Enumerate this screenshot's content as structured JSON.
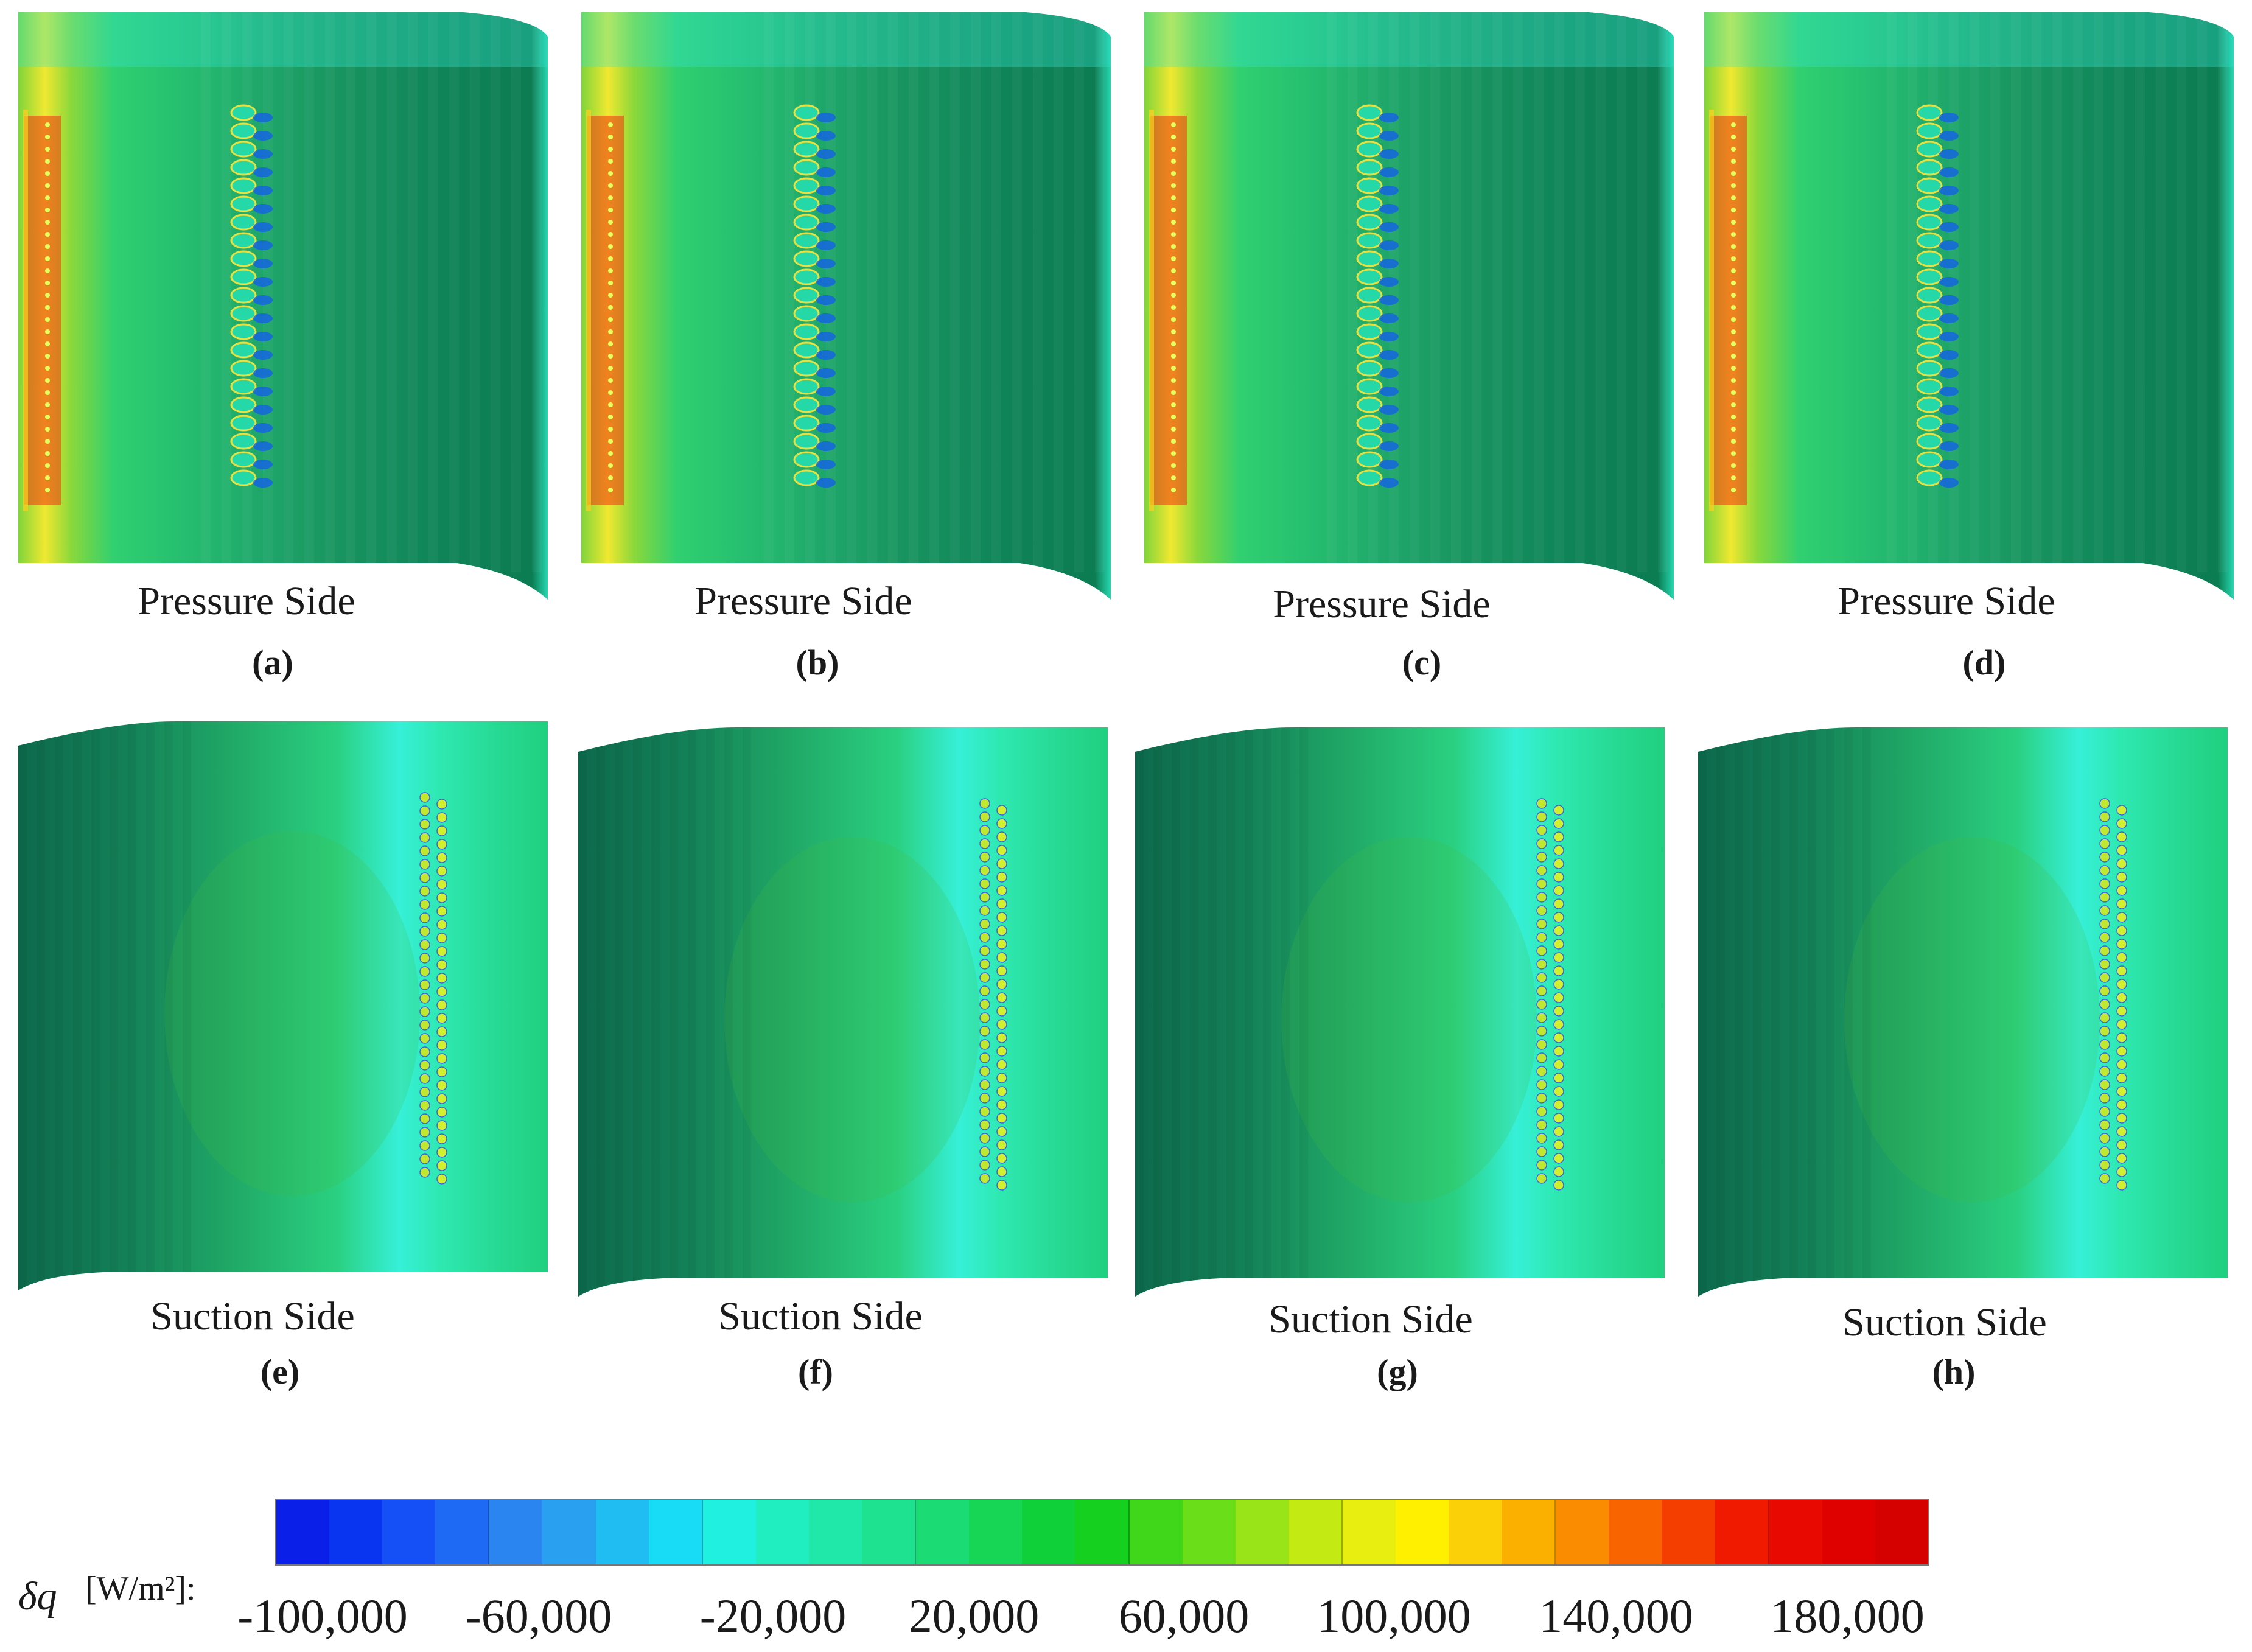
{
  "panels": [
    {
      "side": "Pressure Side",
      "letter": "(a)",
      "type": "pressure"
    },
    {
      "side": "Pressure Side",
      "letter": "(b)",
      "type": "pressure"
    },
    {
      "side": "Pressure Side",
      "letter": "(c)",
      "type": "pressure"
    },
    {
      "side": "Pressure Side",
      "letter": "(d)",
      "type": "pressure"
    },
    {
      "side": "Suction Side",
      "letter": "(e)",
      "type": "suction"
    },
    {
      "side": "Suction Side",
      "letter": "(f)",
      "type": "suction"
    },
    {
      "side": "Suction Side",
      "letter": "(g)",
      "type": "suction"
    },
    {
      "side": "Suction Side",
      "letter": "(h)",
      "type": "suction"
    }
  ],
  "colorbar": {
    "symbol": "δq",
    "units": "[W/m²]:",
    "labels": [
      "-100,000",
      "-60,000",
      "-20,000",
      "20,000",
      "60,000",
      "100,000",
      "140,000",
      "180,000"
    ],
    "colors": [
      "#0a1fe8",
      "#0a35f0",
      "#1450f5",
      "#1f6af5",
      "#2a85f0",
      "#2aa0f0",
      "#20bdf2",
      "#18dcf5",
      "#1ff0e0",
      "#20eec0",
      "#1fe8a8",
      "#1fe290",
      "#1bdc74",
      "#17d656",
      "#10d03a",
      "#16d020",
      "#40d61a",
      "#6ade18",
      "#98e418",
      "#c4ea14",
      "#e8ee10",
      "#fff000",
      "#fcd008",
      "#fbb000",
      "#f98c00",
      "#f76400",
      "#f43e00",
      "#f01a00",
      "#e80a00",
      "#df0000",
      "#d50000"
    ],
    "value_range": [
      -120000,
      200000
    ]
  }
}
